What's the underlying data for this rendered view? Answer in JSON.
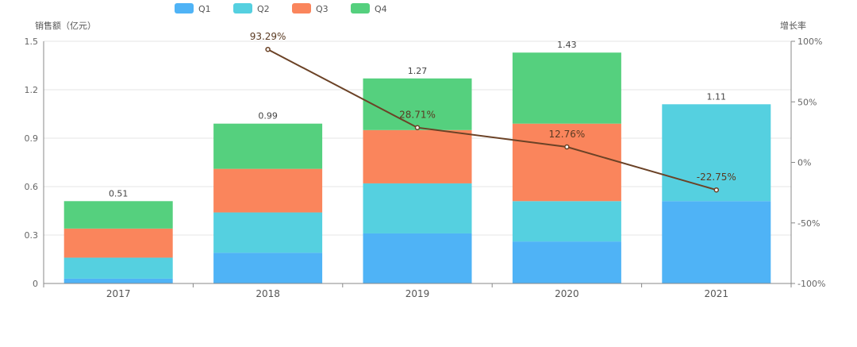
{
  "chart_data": {
    "type": "bar",
    "stacked": true,
    "categories": [
      "2017",
      "2018",
      "2019",
      "2020",
      "2021"
    ],
    "series": [
      {
        "name": "Q1",
        "color": "#4fb3f6",
        "values": [
          0.03,
          0.19,
          0.31,
          0.26,
          0.51
        ]
      },
      {
        "name": "Q2",
        "color": "#55d0e0",
        "values": [
          0.13,
          0.25,
          0.31,
          0.25,
          0.6
        ]
      },
      {
        "name": "Q3",
        "color": "#fa855c",
        "values": [
          0.18,
          0.27,
          0.33,
          0.48,
          0
        ]
      },
      {
        "name": "Q4",
        "color": "#55d07e",
        "values": [
          0.17,
          0.28,
          0.32,
          0.44,
          0
        ]
      }
    ],
    "totals": [
      "0.51",
      "0.99",
      "1.27",
      "1.43",
      "1.11"
    ],
    "growth": {
      "name": "增长率",
      "color": "#6b4226",
      "values": [
        null,
        93.29,
        28.71,
        12.76,
        -22.75
      ],
      "labels": [
        "",
        "93.29%",
        "28.71%",
        "12.76%",
        "-22.75%"
      ]
    },
    "ylabel": "销售额（亿元）",
    "y2label": "增长率",
    "ylim": [
      0,
      1.5
    ],
    "yticks": [
      "0",
      "0.3",
      "0.6",
      "0.9",
      "1.2",
      "1.5"
    ],
    "y2lim": [
      -100,
      100
    ],
    "y2ticks": [
      "-100%",
      "-50%",
      "0%",
      "50%",
      "100%"
    ],
    "legend_position": "top-left"
  }
}
